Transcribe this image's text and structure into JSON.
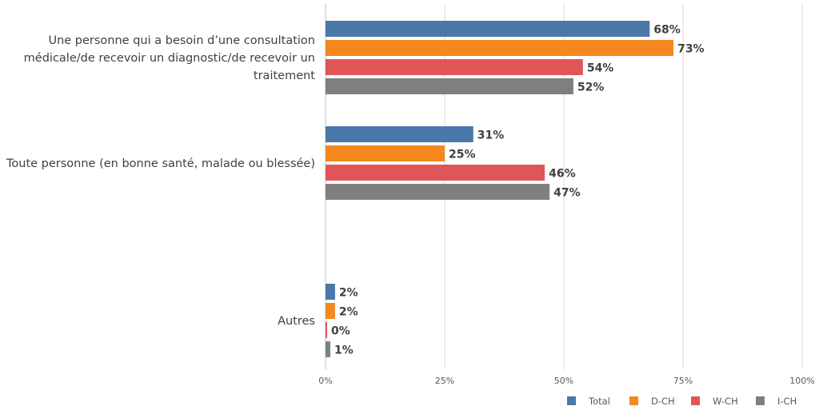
{
  "chart_data": {
    "type": "bar",
    "orientation": "horizontal",
    "categories": [
      [
        "Une personne qui a besoin d’une consultation",
        "médicale/de recevoir un diagnostic/de recevoir un",
        "traitement"
      ],
      [
        "Toute personne (en bonne santé, malade ou blessée)"
      ],
      [
        "Autres"
      ]
    ],
    "series": [
      {
        "name": "Total",
        "color": "#4a78a8",
        "values": [
          68,
          31,
          2
        ]
      },
      {
        "name": "D-CH",
        "color": "#f5881f",
        "values": [
          73,
          25,
          2
        ]
      },
      {
        "name": "W-CH",
        "color": "#e05558",
        "values": [
          54,
          46,
          0
        ]
      },
      {
        "name": "I-CH",
        "color": "#7f7f7f",
        "values": [
          52,
          47,
          1
        ]
      }
    ],
    "xlim": [
      0,
      100
    ],
    "xticks": [
      "0%",
      "25%",
      "50%",
      "75%",
      "100%"
    ],
    "value_suffix": "%",
    "grid": true,
    "legend_position": "bottom-right"
  }
}
